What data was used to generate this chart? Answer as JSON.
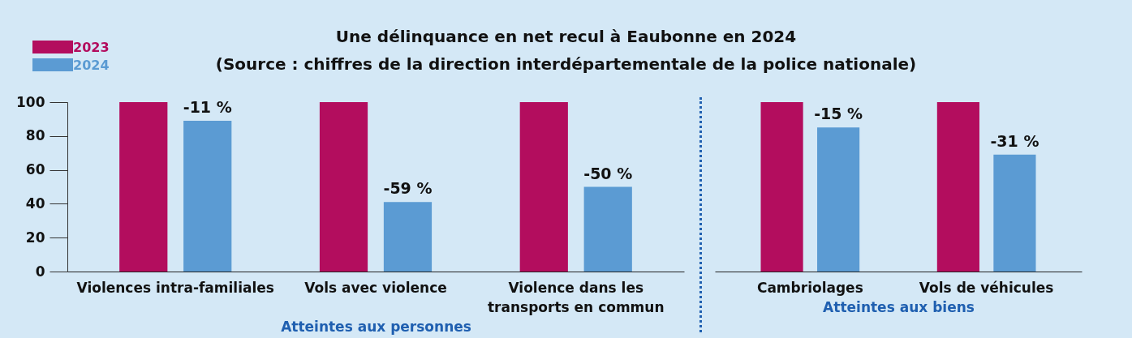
{
  "chart_data": [
    {
      "type": "bar",
      "title": "Une délinquance en net recul à Eaubonne en 2024",
      "subtitle": "(Source : chiffres de la direction interdépartementale de la police nationale)",
      "xlabel": "Atteintes aux personnes",
      "categories": [
        "Violences intra-familiales",
        "Vols avec violence",
        "Violence dans les transports en commun"
      ],
      "series": [
        {
          "name": "2023",
          "color": "#b30d5e",
          "values": [
            100,
            100,
            100
          ]
        },
        {
          "name": "2024",
          "color": "#5b9bd3",
          "values": [
            89,
            41,
            50
          ]
        }
      ],
      "annotations": [
        "-11 %",
        "-59 %",
        "-50 %"
      ],
      "ylim": [
        0,
        100
      ],
      "yticks": [
        0,
        20,
        40,
        60,
        80,
        100
      ],
      "legend": "top left"
    },
    {
      "type": "bar",
      "xlabel": "Atteintes aux biens",
      "categories": [
        "Cambriolages",
        "Vols de véhicules"
      ],
      "series": [
        {
          "name": "2023",
          "color": "#b30d5e",
          "values": [
            100,
            100
          ]
        },
        {
          "name": "2024",
          "color": "#5b9bd3",
          "values": [
            85,
            69
          ]
        }
      ],
      "annotations": [
        "-15 %",
        "-31 %"
      ],
      "ylim": [
        0,
        100
      ],
      "yticks": [
        0,
        20,
        40,
        60,
        80,
        100
      ],
      "tick_labels": "x"
    }
  ]
}
